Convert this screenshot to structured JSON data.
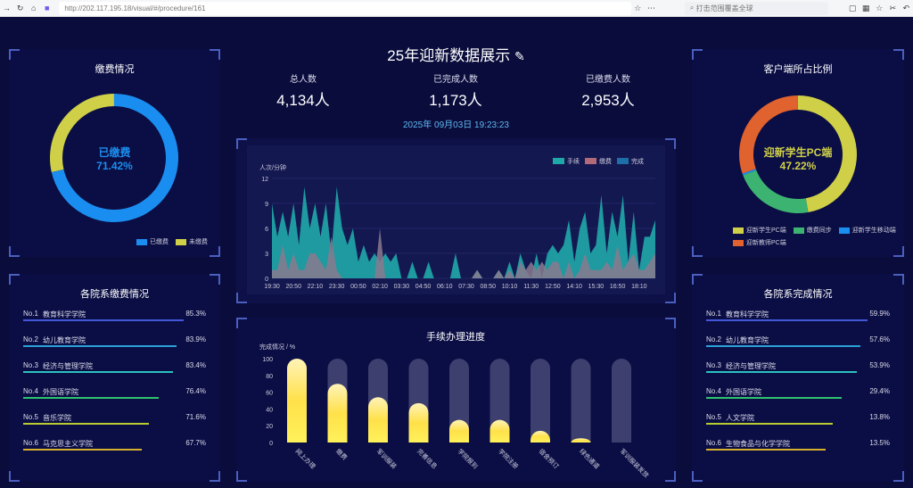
{
  "browser": {
    "url": "http://202.117.195.18/visual/#/procedure/161",
    "search_placeholder": "打击范围覆盖全球"
  },
  "header": {
    "title": "25年迎新数据展示",
    "stats": [
      {
        "label": "总人数",
        "value": "4,134人"
      },
      {
        "label": "已完成人数",
        "value": "1,173人"
      },
      {
        "label": "已缴费人数",
        "value": "2,953人"
      }
    ],
    "datetime": "2025年 09月03日 19:23:23"
  },
  "payment": {
    "title": "缴费情况",
    "center_label": "已缴费",
    "center_value": "71.42%",
    "slices": [
      {
        "name": "已缴费",
        "value": 71.42,
        "color": "#1a8ef0"
      },
      {
        "name": "未缴费",
        "value": 28.58,
        "color": "#cfd048"
      }
    ]
  },
  "client": {
    "title": "客户端所占比例",
    "center_label": "迎新学生PC端",
    "center_value": "47.22%",
    "slices": [
      {
        "name": "迎新学生PC端",
        "value": 47.22,
        "color": "#cfd048"
      },
      {
        "name": "缴费同步",
        "value": 22,
        "color": "#3cb371"
      },
      {
        "name": "迎新学生移动端",
        "value": 0.5,
        "color": "#1a8ef0"
      },
      {
        "name": "迎新教师PC端",
        "value": 30.28,
        "color": "#e0622e"
      }
    ]
  },
  "dept_pay": {
    "title": "各院系缴费情况",
    "items": [
      {
        "no": "No.1",
        "name": "教育科学学院",
        "pct": "85.3%",
        "color": "#4457d8"
      },
      {
        "no": "No.2",
        "name": "幼儿教育学院",
        "pct": "83.9%",
        "color": "#2aa0d8"
      },
      {
        "no": "No.3",
        "name": "经济与管理学院",
        "pct": "83.4%",
        "color": "#2cc0c0"
      },
      {
        "no": "No.4",
        "name": "外国语学院",
        "pct": "76.4%",
        "color": "#2ec46e"
      },
      {
        "no": "No.5",
        "name": "音乐学院",
        "pct": "71.6%",
        "color": "#b8cc30"
      },
      {
        "no": "No.6",
        "name": "马克思主义学院",
        "pct": "67.7%",
        "color": "#d8b030"
      }
    ]
  },
  "dept_done": {
    "title": "各院系完成情况",
    "items": [
      {
        "no": "No.1",
        "name": "教育科学学院",
        "pct": "59.9%",
        "color": "#4457d8"
      },
      {
        "no": "No.2",
        "name": "幼儿教育学院",
        "pct": "57.6%",
        "color": "#2aa0d8"
      },
      {
        "no": "No.3",
        "name": "经济与管理学院",
        "pct": "53.9%",
        "color": "#2cc0c0"
      },
      {
        "no": "No.4",
        "name": "外国语学院",
        "pct": "29.4%",
        "color": "#2ec46e"
      },
      {
        "no": "No.5",
        "name": "人文学院",
        "pct": "13.8%",
        "color": "#b8cc30"
      },
      {
        "no": "No.6",
        "name": "生物食品与化学学院",
        "pct": "13.5%",
        "color": "#d8b030"
      }
    ]
  },
  "chart_data": [
    {
      "type": "area",
      "ylabel": "人次/分钟",
      "ylim": [
        0,
        12
      ],
      "yticks": [
        0,
        3,
        6,
        9,
        12
      ],
      "grid": true,
      "legend_position": "top-right",
      "xticks": [
        "19:30",
        "20:50",
        "22:10",
        "23:30",
        "00:50",
        "02:10",
        "03:30",
        "04:50",
        "06:10",
        "07:30",
        "08:50",
        "10:10",
        "11:30",
        "12:50",
        "14:10",
        "15:30",
        "16:50",
        "18:10"
      ],
      "series": [
        {
          "name": "手续",
          "color": "#1fa8a8",
          "values": [
            9,
            5,
            8,
            5,
            9,
            4,
            11,
            6,
            9,
            5,
            9,
            3,
            11,
            6,
            4,
            6,
            2,
            4,
            2,
            3,
            2,
            3,
            2,
            3,
            0,
            0,
            2,
            0,
            0,
            2,
            0,
            0,
            0,
            0,
            3,
            0,
            0,
            0,
            1,
            0,
            0,
            0,
            1,
            0,
            2,
            0,
            3,
            1,
            0,
            3,
            0,
            3,
            4,
            3,
            4,
            7,
            2,
            6,
            8,
            3,
            4,
            10,
            3,
            8,
            5,
            10,
            2,
            8,
            1,
            5,
            5,
            7
          ]
        },
        {
          "name": "缴费",
          "color": "#b06a7a",
          "values": [
            1,
            1,
            4,
            1,
            3,
            1,
            1,
            3,
            3,
            2,
            1,
            5,
            1,
            0,
            0,
            0,
            0,
            0,
            0,
            0,
            6,
            0,
            0,
            0,
            0,
            0,
            0,
            0,
            0,
            0,
            0,
            0,
            0,
            0,
            0,
            0,
            0,
            0,
            1,
            0,
            0,
            0,
            1,
            0,
            1,
            0,
            2,
            1,
            2,
            1,
            2,
            1,
            2,
            2,
            0,
            2,
            0,
            1,
            3,
            1,
            1,
            1,
            2,
            1,
            4,
            1,
            2,
            3,
            1,
            1,
            2,
            3
          ]
        },
        {
          "name": "完成",
          "color": "#1e6fa8",
          "values": []
        }
      ]
    },
    {
      "type": "bar",
      "title": "手续办理进度",
      "ylabel": "完成情况 / %",
      "ylim": [
        0,
        100
      ],
      "yticks": [
        0,
        20,
        40,
        60,
        80,
        100
      ],
      "categories": [
        "网上办理",
        "缴费",
        "军训服装",
        "完善信息",
        "学院报到",
        "学院注册",
        "宿舍预订",
        "绿色通道",
        "军训服装发放"
      ],
      "values": [
        100,
        70,
        54,
        47,
        27,
        27,
        14,
        5,
        0
      ]
    }
  ]
}
